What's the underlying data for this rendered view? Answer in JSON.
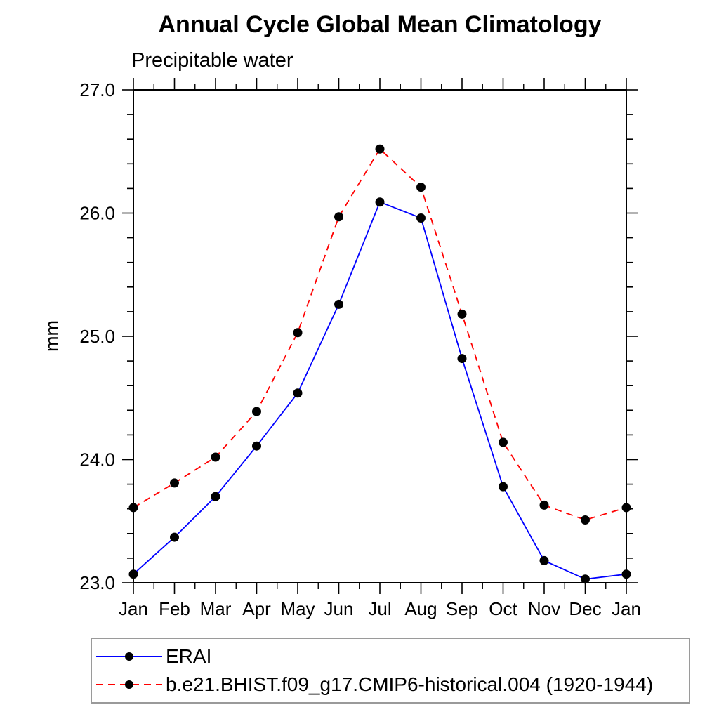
{
  "chart": {
    "title": "Annual Cycle Global Mean Climatology",
    "subtitle": "Precipitable water",
    "ylabel": "mm",
    "background_color": "#ffffff",
    "axis_color": "#000000",
    "legend_border_color": "#9a9a9a"
  },
  "chart_data": {
    "type": "line",
    "title": "Annual Cycle Global Mean Climatology",
    "subtitle": "Precipitable water",
    "xlabel": "",
    "ylabel": "mm",
    "categories": [
      "Jan",
      "Feb",
      "Mar",
      "Apr",
      "May",
      "Jun",
      "Jul",
      "Aug",
      "Sep",
      "Oct",
      "Nov",
      "Dec",
      "Jan"
    ],
    "series": [
      {
        "name": "ERAI",
        "color": "#0000ff",
        "line_style": "solid",
        "marker": "circle",
        "marker_color": "#000000",
        "values": [
          23.07,
          23.37,
          23.7,
          24.11,
          24.54,
          25.26,
          26.09,
          25.96,
          24.82,
          23.78,
          23.18,
          23.03,
          23.07
        ]
      },
      {
        "name": "b.e21.BHIST.f09_g17.CMIP6-historical.004 (1920-1944)",
        "color": "#ff0000",
        "line_style": "dashed",
        "marker": "circle",
        "marker_color": "#000000",
        "values": [
          23.61,
          23.81,
          24.02,
          24.39,
          25.03,
          25.97,
          26.52,
          26.21,
          25.18,
          24.14,
          23.63,
          23.51,
          23.61
        ]
      }
    ],
    "ylim": [
      23.0,
      27.0
    ],
    "ytick_major_interval": 1.0,
    "ytick_minor_interval": 0.2,
    "ytick_labels": [
      "23.0",
      "24.0",
      "25.0",
      "26.0",
      "27.0"
    ],
    "grid": false,
    "legend_position": "bottom"
  }
}
